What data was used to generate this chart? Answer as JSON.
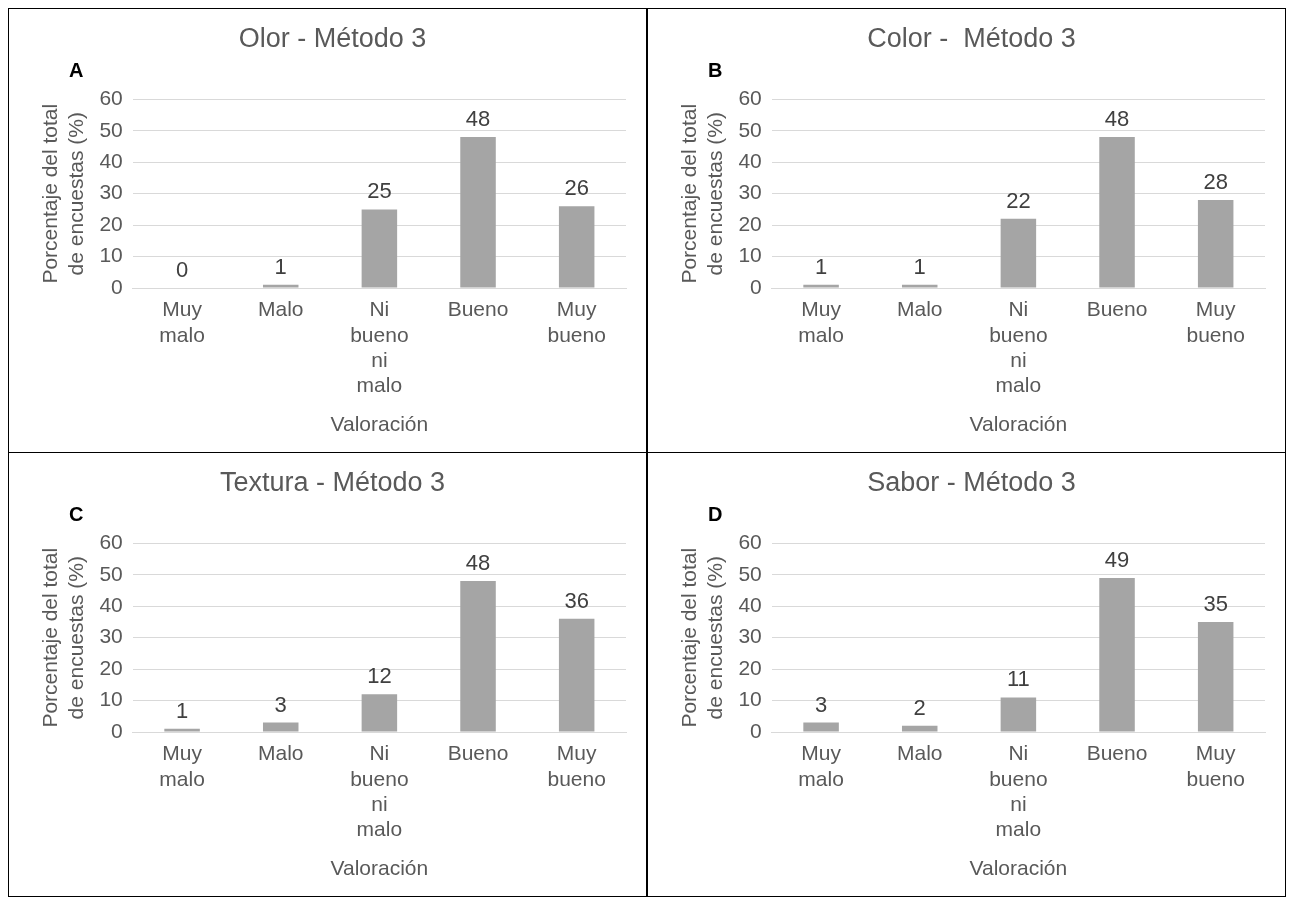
{
  "chart_data": [
    {
      "type": "bar",
      "title": "Olor - Método 3",
      "xlabel": "Valoración",
      "ylabel": "Porcentaje del total de encuestas (%)",
      "annotations": [
        "A"
      ],
      "categories": [
        "Muy malo",
        "Malo",
        "Ni bueno ni malo",
        "Bueno",
        "Muy bueno"
      ],
      "values": [
        0,
        1,
        25,
        48,
        26
      ],
      "color": "#a5a5a5",
      "ylim": [
        0,
        60
      ],
      "yticks": [
        0,
        10,
        20,
        30,
        40,
        50,
        60
      ],
      "grid": "y",
      "data_labels": true,
      "legend": false
    },
    {
      "type": "bar",
      "title": "Color -  Método 3",
      "xlabel": "Valoración",
      "ylabel": "Porcentaje del total de encuestas (%)",
      "annotations": [
        "B"
      ],
      "categories": [
        "Muy malo",
        "Malo",
        "Ni bueno ni malo",
        "Bueno",
        "Muy bueno"
      ],
      "values": [
        1,
        1,
        22,
        48,
        28
      ],
      "color": "#a5a5a5",
      "ylim": [
        0,
        60
      ],
      "yticks": [
        0,
        10,
        20,
        30,
        40,
        50,
        60
      ],
      "grid": "y",
      "data_labels": true,
      "legend": false
    },
    {
      "type": "bar",
      "title": "Textura - Método 3",
      "xlabel": "Valoración",
      "ylabel": "Porcentaje del total de encuestas (%)",
      "annotations": [
        "C"
      ],
      "categories": [
        "Muy malo",
        "Malo",
        "Ni bueno ni malo",
        "Bueno",
        "Muy bueno"
      ],
      "values": [
        1,
        3,
        12,
        48,
        36
      ],
      "color": "#a5a5a5",
      "ylim": [
        0,
        60
      ],
      "yticks": [
        0,
        10,
        20,
        30,
        40,
        50,
        60
      ],
      "grid": "y",
      "data_labels": true,
      "legend": false
    },
    {
      "type": "bar",
      "title": "Sabor - Método 3",
      "xlabel": "Valoración",
      "ylabel": "Porcentaje del total de encuestas (%)",
      "annotations": [
        "D"
      ],
      "categories": [
        "Muy malo",
        "Malo",
        "Ni bueno ni malo",
        "Bueno",
        "Muy bueno"
      ],
      "values": [
        3,
        2,
        11,
        49,
        35
      ],
      "color": "#a5a5a5",
      "ylim": [
        0,
        60
      ],
      "yticks": [
        0,
        10,
        20,
        30,
        40,
        50,
        60
      ],
      "grid": "y",
      "data_labels": true,
      "legend": false
    }
  ]
}
